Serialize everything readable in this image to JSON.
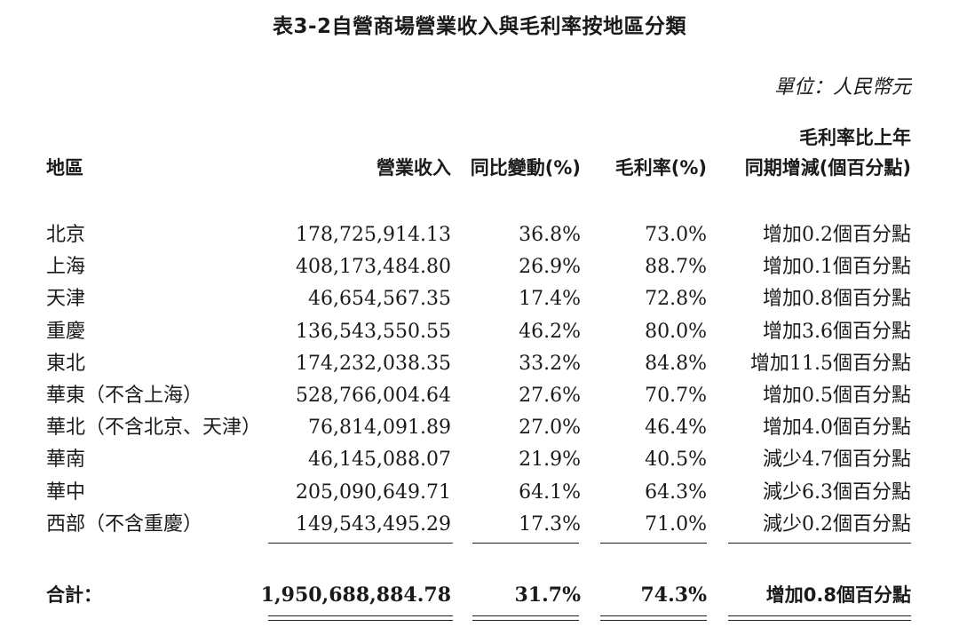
{
  "title": "表3-2自營商場營業收入與毛利率按地區分類",
  "unit": "單位：人民幣元",
  "headers": {
    "region": "地區",
    "revenue": "營業收入",
    "yoy": "同比變動(%)",
    "gross_margin": "毛利率(%)",
    "gm_change_line1": "毛利率比上年",
    "gm_change_line2": "同期增減(個百分點)"
  },
  "rows": [
    {
      "region": "北京",
      "revenue": "178,725,914.13",
      "yoy": "36.8%",
      "gross_margin": "73.0%",
      "gm_change": "增加0.2個百分點"
    },
    {
      "region": "上海",
      "revenue": "408,173,484.80",
      "yoy": "26.9%",
      "gross_margin": "88.7%",
      "gm_change": "增加0.1個百分點"
    },
    {
      "region": "天津",
      "revenue": "46,654,567.35",
      "yoy": "17.4%",
      "gross_margin": "72.8%",
      "gm_change": "增加0.8個百分點"
    },
    {
      "region": "重慶",
      "revenue": "136,543,550.55",
      "yoy": "46.2%",
      "gross_margin": "80.0%",
      "gm_change": "增加3.6個百分點"
    },
    {
      "region": "東北",
      "revenue": "174,232,038.35",
      "yoy": "33.2%",
      "gross_margin": "84.8%",
      "gm_change": "增加11.5個百分點"
    },
    {
      "region": "華東（不含上海）",
      "revenue": "528,766,004.64",
      "yoy": "27.6%",
      "gross_margin": "70.7%",
      "gm_change": "增加0.5個百分點"
    },
    {
      "region": "華北（不含北京、天津）",
      "revenue": "76,814,091.89",
      "yoy": "27.0%",
      "gross_margin": "46.4%",
      "gm_change": "增加4.0個百分點"
    },
    {
      "region": "華南",
      "revenue": "46,145,088.07",
      "yoy": "21.9%",
      "gross_margin": "40.5%",
      "gm_change": "減少4.7個百分點"
    },
    {
      "region": "華中",
      "revenue": "205,090,649.71",
      "yoy": "64.1%",
      "gross_margin": "64.3%",
      "gm_change": "減少6.3個百分點"
    },
    {
      "region": "西部（不含重慶）",
      "revenue": "149,543,495.29",
      "yoy": "17.3%",
      "gross_margin": "71.0%",
      "gm_change": "減少0.2個百分點"
    }
  ],
  "total": {
    "label": "合計：",
    "revenue": "1,950,688,884.78",
    "yoy": "31.7%",
    "gross_margin": "74.3%",
    "gm_change": "增加0.8個百分點"
  }
}
